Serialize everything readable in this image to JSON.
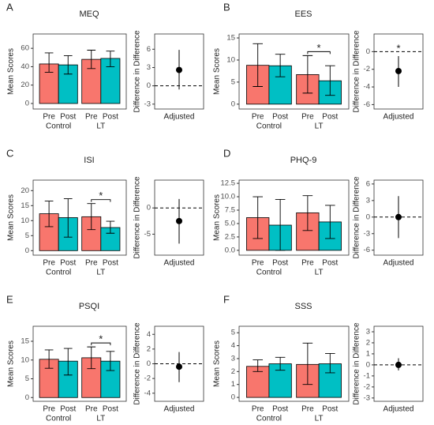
{
  "chart_data": [
    {
      "type": "bar",
      "panel": "A",
      "title": "MEQ",
      "y_label": "Mean Scores",
      "categories": [
        "Control",
        "LT"
      ],
      "series": [
        {
          "name": "Pre",
          "color": "#F8766D",
          "values": [
            43,
            48
          ],
          "lower": [
            34,
            38
          ],
          "upper": [
            55,
            58
          ]
        },
        {
          "name": "Post",
          "color": "#00BFC4",
          "values": [
            42,
            49
          ],
          "lower": [
            32,
            40
          ],
          "upper": [
            52,
            57
          ]
        }
      ],
      "ylim": [
        -6,
        75.6
      ],
      "yticks": [
        0,
        20,
        40,
        60
      ]
    },
    {
      "type": "point",
      "y_label": "Difference in Difference",
      "categories": [
        "Adjusted"
      ],
      "values": [
        2.6
      ],
      "lower": [
        -0.6
      ],
      "upper": [
        5.9
      ],
      "reference_line": 0,
      "ylim": [
        -3.8,
        8.5
      ],
      "yticks": [
        -3,
        0,
        3,
        6
      ]
    },
    {
      "type": "bar",
      "panel": "B",
      "title": "EES",
      "y_label": "Mean Scores",
      "categories": [
        "Control",
        "LT"
      ],
      "series": [
        {
          "name": "Pre",
          "color": "#F8766D",
          "values": [
            8.8,
            6.7
          ],
          "lower": [
            4,
            2.5
          ],
          "upper": [
            13.7,
            11
          ]
        },
        {
          "name": "Post",
          "color": "#00BFC4",
          "values": [
            8.7,
            5.3
          ],
          "lower": [
            6.2,
            2
          ],
          "upper": [
            11.3,
            8.7
          ]
        }
      ],
      "significance": {
        "category": "LT",
        "label": "*"
      },
      "ylim": [
        -1.1,
        15.9
      ],
      "yticks": [
        0,
        5,
        10,
        15
      ]
    },
    {
      "type": "point",
      "y_label": "Difference in Difference",
      "categories": [
        "Adjusted"
      ],
      "values": [
        -2.2
      ],
      "lower": [
        -4
      ],
      "upper": [
        -0.5
      ],
      "significance_label": "*",
      "reference_line": 0,
      "ylim": [
        -6.5,
        2
      ],
      "yticks": [
        -6,
        -4,
        -2,
        0
      ]
    },
    {
      "type": "bar",
      "panel": "C",
      "title": "ISI",
      "y_label": "Mean Scores",
      "categories": [
        "Control",
        "LT"
      ],
      "series": [
        {
          "name": "Pre",
          "color": "#F8766D",
          "values": [
            12.3,
            11.3
          ],
          "lower": [
            8,
            7
          ],
          "upper": [
            16.5,
            15.7
          ]
        },
        {
          "name": "Post",
          "color": "#00BFC4",
          "values": [
            11,
            7.7
          ],
          "lower": [
            4.5,
            5.8
          ],
          "upper": [
            17.3,
            9.8
          ]
        }
      ],
      "significance": {
        "category": "LT",
        "label": "*"
      },
      "ylim": [
        -1.5,
        23.5
      ],
      "yticks": [
        0,
        5,
        10,
        15,
        20
      ]
    },
    {
      "type": "point",
      "y_label": "Difference in Difference",
      "categories": [
        "Adjusted"
      ],
      "values": [
        -2.5
      ],
      "lower": [
        -6.8
      ],
      "upper": [
        1.7
      ],
      "reference_line": 0,
      "ylim": [
        -9,
        5.3
      ],
      "yticks": [
        -5,
        0
      ]
    },
    {
      "type": "bar",
      "panel": "D",
      "title": "PHQ-9",
      "y_label": "Mean Scores",
      "categories": [
        "Control",
        "LT"
      ],
      "series": [
        {
          "name": "Pre",
          "color": "#F8766D",
          "values": [
            6.1,
            7
          ],
          "lower": [
            2.2,
            3.7
          ],
          "upper": [
            10,
            10.2
          ]
        },
        {
          "name": "Post",
          "color": "#00BFC4",
          "values": [
            4.7,
            5.3
          ],
          "lower": [
            0,
            2.2
          ],
          "upper": [
            9.5,
            8.4
          ]
        }
      ],
      "ylim": [
        -0.9,
        13.1
      ],
      "yticks": [
        {
          "value": 0,
          "label": "0.0"
        },
        {
          "value": 2.5,
          "label": "2.5"
        },
        {
          "value": 5,
          "label": "5.0"
        },
        {
          "value": 7.5,
          "label": "7.5"
        },
        {
          "value": 10,
          "label": "10.0"
        },
        {
          "value": 12.5,
          "label": "12.5"
        }
      ]
    },
    {
      "type": "point",
      "y_label": "Difference in Difference",
      "categories": [
        "Adjusted"
      ],
      "values": [
        0
      ],
      "lower": [
        -3.8
      ],
      "upper": [
        3.8
      ],
      "reference_line": 0,
      "ylim": [
        -6.9,
        6.7
      ],
      "yticks": [
        -6,
        -3,
        0,
        3,
        6
      ]
    },
    {
      "type": "bar",
      "panel": "E",
      "title": "PSQI",
      "y_label": "Mean Scores",
      "categories": [
        "Control",
        "LT"
      ],
      "series": [
        {
          "name": "Pre",
          "color": "#F8766D",
          "values": [
            10.2,
            10.6
          ],
          "lower": [
            7.8,
            7.7
          ],
          "upper": [
            12.7,
            13.5
          ]
        },
        {
          "name": "Post",
          "color": "#00BFC4",
          "values": [
            9.7,
            9.7
          ],
          "lower": [
            6,
            7.2
          ],
          "upper": [
            13.1,
            12.3
          ]
        }
      ],
      "significance": {
        "category": "LT",
        "label": "*"
      },
      "ylim": [
        -1,
        19
      ],
      "yticks": [
        0,
        5,
        10,
        15
      ]
    },
    {
      "type": "point",
      "y_label": "Difference in Difference",
      "categories": [
        "Adjusted"
      ],
      "values": [
        -0.4
      ],
      "lower": [
        -2.5
      ],
      "upper": [
        1.6
      ],
      "reference_line": 0,
      "ylim": [
        -5.1,
        5.1
      ],
      "yticks": [
        -4,
        -2,
        0,
        2,
        4
      ]
    },
    {
      "type": "bar",
      "panel": "F",
      "title": "SSS",
      "y_label": "Mean Scores",
      "categories": [
        "Control",
        "LT"
      ],
      "series": [
        {
          "name": "Pre",
          "color": "#F8766D",
          "values": [
            2.4,
            2.55
          ],
          "lower": [
            2,
            1
          ],
          "upper": [
            2.9,
            4.2
          ]
        },
        {
          "name": "Post",
          "color": "#00BFC4",
          "values": [
            2.6,
            2.6
          ],
          "lower": [
            2.1,
            1.9
          ],
          "upper": [
            3.1,
            3.4
          ]
        }
      ],
      "ylim": [
        -0.3,
        5.5
      ],
      "yticks": [
        0,
        1,
        2,
        3,
        4,
        5
      ]
    },
    {
      "type": "point",
      "y_label": "Difference in Difference",
      "categories": [
        "Adjusted"
      ],
      "values": [
        0
      ],
      "lower": [
        -0.5
      ],
      "upper": [
        0.6
      ],
      "reference_line": 0,
      "ylim": [
        -3.3,
        3.5
      ],
      "yticks": [
        -3,
        -2,
        -1,
        0,
        1,
        2,
        3
      ]
    }
  ]
}
